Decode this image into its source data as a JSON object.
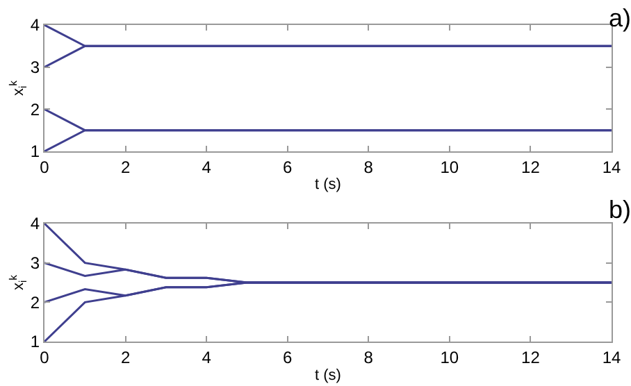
{
  "chart_data": [
    {
      "type": "line",
      "xlabel": "t (s)",
      "ylabel": "x$_{i}$$^{k}$",
      "annotations": [
        "a)"
      ],
      "xlim": [
        0,
        14
      ],
      "ylim": [
        1,
        4
      ],
      "xticks": [
        0,
        2,
        4,
        6,
        8,
        10,
        12,
        14
      ],
      "yticks": [
        1,
        2,
        3,
        4
      ],
      "grid": false,
      "series": [
        {
          "color": "#3f3f8f",
          "x": [
            0,
            1,
            14
          ],
          "values": [
            4,
            3.5,
            3.5
          ]
        },
        {
          "color": "#3f3f8f",
          "x": [
            0,
            1,
            14
          ],
          "values": [
            3,
            3.5,
            3.5
          ]
        },
        {
          "color": "#3f3f8f",
          "x": [
            0,
            1,
            14
          ],
          "values": [
            2,
            1.5,
            1.5
          ]
        },
        {
          "color": "#3f3f8f",
          "x": [
            0,
            1,
            14
          ],
          "values": [
            1,
            1.5,
            1.5
          ]
        }
      ]
    },
    {
      "type": "line",
      "xlabel": "t (s)",
      "ylabel": "x$_{i}$$^{k}$",
      "annotations": [
        "b)"
      ],
      "xlim": [
        0,
        14
      ],
      "ylim": [
        1,
        4
      ],
      "xticks": [
        0,
        2,
        4,
        6,
        8,
        10,
        12,
        14
      ],
      "yticks": [
        1,
        2,
        3,
        4
      ],
      "grid": false,
      "series": [
        {
          "color": "#3f3f8f",
          "x": [
            0,
            1,
            2,
            3,
            4,
            5,
            14
          ],
          "values": [
            4,
            3,
            2.83,
            2.62,
            2.62,
            2.5,
            2.5
          ]
        },
        {
          "color": "#3f3f8f",
          "x": [
            0,
            1,
            2,
            3,
            4,
            5,
            14
          ],
          "values": [
            3,
            2.67,
            2.83,
            2.62,
            2.62,
            2.5,
            2.5
          ]
        },
        {
          "color": "#3f3f8f",
          "x": [
            0,
            1,
            2,
            3,
            4,
            5,
            14
          ],
          "values": [
            2,
            2.33,
            2.17,
            2.38,
            2.38,
            2.5,
            2.5
          ]
        },
        {
          "color": "#3f3f8f",
          "x": [
            0,
            1,
            2,
            3,
            4,
            5,
            14
          ],
          "values": [
            1,
            2,
            2.17,
            2.38,
            2.38,
            2.5,
            2.5
          ]
        }
      ]
    }
  ]
}
